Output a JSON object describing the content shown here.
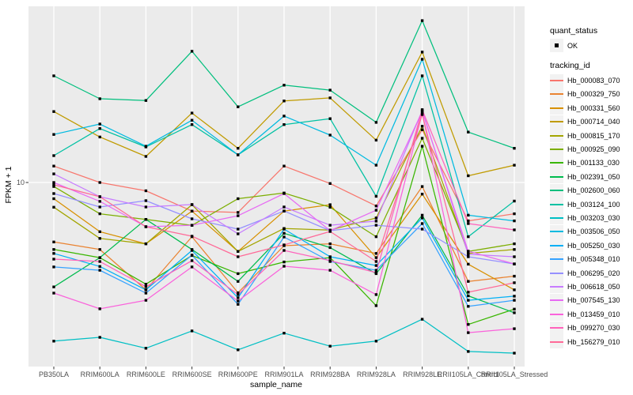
{
  "chart_data": {
    "type": "line",
    "title": "",
    "xlabel": "sample_name",
    "ylabel": "FPKM + 1",
    "y_scale": "log10",
    "y_ticks": [
      {
        "value": 10,
        "label": "10"
      }
    ],
    "grid": "vertical-per-category-plus-y10",
    "legend_position": "right",
    "point_marker": "small-black-square",
    "categories": [
      "PB350LA",
      "RRIM600LA",
      "RRIM600LE",
      "RRIM600SE",
      "RRIM600PE",
      "RRIM901LA",
      "RRIM928BA",
      "RRIM928LA",
      "RRIM928LE",
      "RRII105LA_Control",
      "RRII105LA_Stressed"
    ],
    "series": [
      {
        "id": "Hb_000083_070",
        "color": "#F8766D",
        "values": [
          11.8,
          10,
          9.2,
          7.5,
          7.4,
          11.8,
          9.9,
          7.9,
          17,
          6.8,
          7.3
        ]
      },
      {
        "id": "Hb_000329_750",
        "color": "#EA8331",
        "values": [
          5.5,
          5.1,
          3.4,
          5.8,
          3.3,
          5.3,
          5.4,
          4.9,
          9.6,
          3.7,
          3.9
        ]
      },
      {
        "id": "Hb_000331_560",
        "color": "#D89000",
        "values": [
          8.5,
          6.1,
          5.4,
          7.5,
          5.0,
          7.5,
          8.0,
          4.7,
          8.9,
          4.4,
          3.4
        ]
      },
      {
        "id": "Hb_000714_040",
        "color": "#C09B00",
        "values": [
          20.4,
          15.8,
          13.0,
          20.1,
          14.1,
          22.7,
          23.4,
          15.3,
          37.1,
          10.7,
          11.9
        ]
      },
      {
        "id": "Hb_000815_170",
        "color": "#A3A500",
        "values": [
          7.8,
          5.7,
          5.4,
          8.0,
          5.0,
          6.3,
          6.2,
          7.0,
          17.6,
          4.9,
          5.1
        ]
      },
      {
        "id": "Hb_000925_090",
        "color": "#7CAE00",
        "values": [
          9.6,
          7.3,
          6.9,
          6.5,
          8.5,
          9.0,
          7.8,
          5.8,
          15.6,
          5.0,
          5.4
        ]
      },
      {
        "id": "Hb_001133_030",
        "color": "#39B600",
        "values": [
          5.1,
          4.7,
          3.6,
          4.8,
          4.0,
          4.5,
          4.7,
          2.9,
          14.4,
          2.4,
          2.8
        ]
      },
      {
        "id": "Hb_002391_050",
        "color": "#00BB4E",
        "values": [
          3.5,
          4.7,
          6.9,
          5.1,
          3.7,
          6.0,
          5.2,
          4.0,
          7.2,
          3.2,
          2.7
        ]
      },
      {
        "id": "Hb_002600_060",
        "color": "#00BF7D",
        "values": [
          29.2,
          23.2,
          22.8,
          37.4,
          21.4,
          26.6,
          25.3,
          18.3,
          50.9,
          16.6,
          14.1
        ]
      },
      {
        "id": "Hb_003124_100",
        "color": "#00C1A3",
        "values": [
          13.1,
          17.2,
          14.3,
          17.9,
          13.2,
          17.9,
          19.0,
          8.7,
          29.2,
          5.8,
          8.3
        ]
      },
      {
        "id": "Hb_003203_030",
        "color": "#00BFC4",
        "values": [
          2.03,
          2.11,
          1.89,
          2.25,
          1.86,
          2.2,
          1.93,
          2.03,
          2.53,
          1.83,
          1.8
        ]
      },
      {
        "id": "Hb_003506_050",
        "color": "#00BAE0",
        "values": [
          16.2,
          18.0,
          14.4,
          18.7,
          13.2,
          19.5,
          16.1,
          11.9,
          34.5,
          7.2,
          6.8
        ]
      },
      {
        "id": "Hb_005250_030",
        "color": "#00B0F6",
        "values": [
          4.9,
          4.3,
          3.4,
          5.05,
          3.14,
          6.26,
          4.74,
          4.34,
          7.0,
          3.06,
          3.19
        ]
      },
      {
        "id": "Hb_005348_010",
        "color": "#35A2FF",
        "values": [
          4.28,
          4.14,
          3.29,
          4.82,
          2.94,
          5.78,
          4.52,
          4.14,
          6.62,
          2.88,
          3.06
        ]
      },
      {
        "id": "Hb_006295_020",
        "color": "#9590FF",
        "values": [
          8.95,
          7.82,
          8.33,
          6.94,
          6.26,
          7.51,
          6.16,
          6.51,
          6.26,
          4.74,
          4.41
        ]
      },
      {
        "id": "Hb_006618_050",
        "color": "#C77CFF",
        "values": [
          10.9,
          8.67,
          7.82,
          8.01,
          5.97,
          7.82,
          6.51,
          6.78,
          20.6,
          4.86,
          4.74
        ]
      },
      {
        "id": "Hb_007545_130",
        "color": "#E76BF3",
        "values": [
          10.0,
          8.27,
          6.41,
          6.51,
          7.16,
          8.95,
          6.16,
          7.57,
          20.4,
          5.01,
          4.41
        ]
      },
      {
        "id": "Hb_013459_010",
        "color": "#FA62DB",
        "values": [
          3.29,
          2.81,
          3.06,
          4.28,
          3.04,
          4.31,
          4.14,
          3.24,
          20.1,
          2.21,
          2.3
        ]
      },
      {
        "id": "Hb_099270_030",
        "color": "#FF62BC",
        "values": [
          4.63,
          4.52,
          3.51,
          4.56,
          3.24,
          5.05,
          4.56,
          4.04,
          20.8,
          6.62,
          6.21
        ]
      },
      {
        "id": "Hb_156279_010",
        "color": "#FF6A98",
        "values": [
          9.77,
          8.67,
          6.41,
          5.83,
          4.74,
          5.34,
          6.11,
          4.52,
          19.8,
          3.32,
          3.65
        ]
      }
    ],
    "colors": {
      "panel_background": "#EBEBEB",
      "grid_line": "#FFFFFF",
      "marker": "#000000",
      "tick_text": "#4D4D4D",
      "axis_text": "#000000",
      "tick_mark": "#333333",
      "legend_key_background": "#F2F2F2"
    }
  },
  "legend": {
    "quant_status": {
      "title": "quant_status",
      "items": [
        {
          "label": "OK",
          "marker": "black-square"
        }
      ]
    },
    "tracking_id": {
      "title": "tracking_id"
    }
  }
}
